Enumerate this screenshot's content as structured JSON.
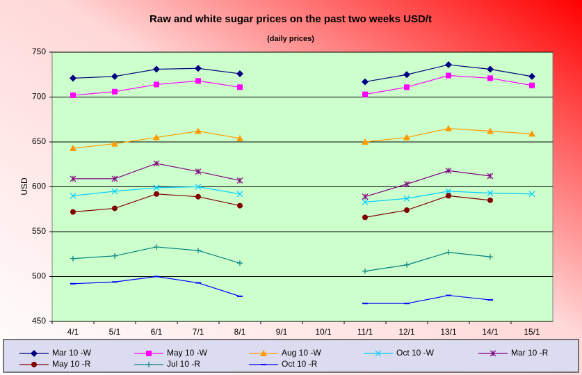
{
  "chart_data": {
    "type": "line",
    "title": "Raw and white sugar prices on the past two weeks USD/t",
    "subtitle": "(daily  prices)",
    "y_label": "USD",
    "categories": [
      "4/1",
      "5/1",
      "6/1",
      "7/1",
      "8/1",
      "9/1",
      "10/1",
      "11/1",
      "12/1",
      "13/1",
      "14/1",
      "15/1"
    ],
    "series": [
      {
        "name": "Mar 10 -W",
        "color": "#000080",
        "marker": "diamond",
        "values": [
          721,
          723,
          731,
          732,
          726,
          null,
          null,
          717,
          725,
          736,
          731,
          723
        ]
      },
      {
        "name": "May 10 -W",
        "color": "#ff00ff",
        "marker": "square",
        "values": [
          702,
          706,
          714,
          718,
          711,
          null,
          null,
          703,
          711,
          724,
          721,
          713
        ]
      },
      {
        "name": "Aug 10 -W",
        "color": "#ff9900",
        "marker": "triangle",
        "values": [
          643,
          648,
          655,
          662,
          654,
          null,
          null,
          650,
          655,
          665,
          662,
          659
        ]
      },
      {
        "name": "Oct 10 -W",
        "color": "#00ccff",
        "marker": "x",
        "values": [
          590,
          595,
          599,
          600,
          592,
          null,
          null,
          583,
          587,
          595,
          593,
          592
        ]
      },
      {
        "name": "Mar 10 -R",
        "color": "#800080",
        "marker": "asterisk",
        "values": [
          609,
          609,
          626,
          617,
          607,
          null,
          null,
          589,
          603,
          618,
          612,
          null
        ]
      },
      {
        "name": "May 10 -R",
        "color": "#800000",
        "marker": "circle",
        "values": [
          572,
          576,
          592,
          589,
          579,
          null,
          null,
          566,
          574,
          590,
          585,
          null
        ]
      },
      {
        "name": "Jul 10 -R",
        "color": "#008080",
        "marker": "plus",
        "values": [
          520,
          523,
          533,
          529,
          515,
          null,
          null,
          506,
          513,
          527,
          522,
          null
        ]
      },
      {
        "name": "Oct 10 -R",
        "color": "#0000ff",
        "marker": "dash",
        "values": [
          492,
          494,
          500,
          493,
          478,
          null,
          null,
          470,
          470,
          479,
          474,
          null
        ]
      }
    ],
    "ylim": [
      450,
      750
    ],
    "yticks": [
      450,
      500,
      550,
      600,
      650,
      700,
      750
    ],
    "grid": true,
    "plot_background": "#ccffcc",
    "legend": "bottom"
  }
}
